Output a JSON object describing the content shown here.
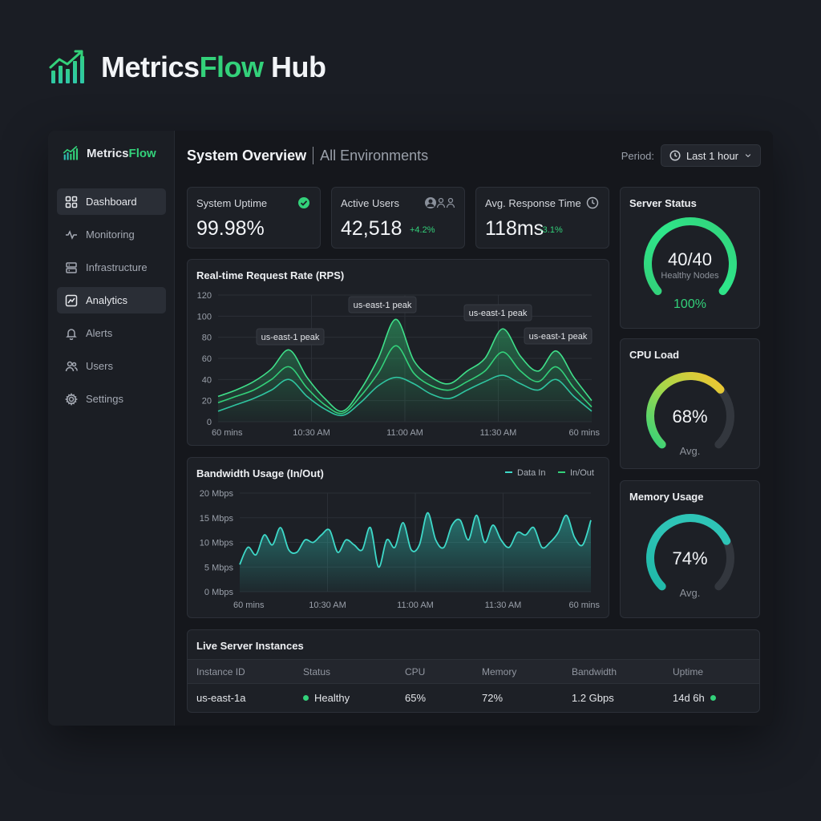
{
  "brand": {
    "name_prefix": "Metrics",
    "name_accent": "Flow",
    "name_suffix": " Hub"
  },
  "sidebar": {
    "brand_prefix": "Metrics",
    "brand_accent": "Flow",
    "items": [
      {
        "label": "Dashboard",
        "icon": "grid-icon",
        "active": true
      },
      {
        "label": "Monitoring",
        "icon": "pulse-icon",
        "active": false
      },
      {
        "label": "Infrastructure",
        "icon": "server-icon",
        "active": false
      },
      {
        "label": "Analytics",
        "icon": "chart-icon",
        "active": true
      },
      {
        "label": "Alerts",
        "icon": "bell-icon",
        "active": false
      },
      {
        "label": "Users",
        "icon": "users-icon",
        "active": false
      },
      {
        "label": "Settings",
        "icon": "gear-icon",
        "active": false
      }
    ]
  },
  "header": {
    "title": "System Overview",
    "subtitle": "All Environments",
    "period_label": "Period:",
    "period_value": "Last 1 hour"
  },
  "stats": {
    "uptime": {
      "label": "System Uptime",
      "value": "99.98%"
    },
    "users": {
      "label": "Active Users",
      "value": "42,518",
      "delta": "+4.2%"
    },
    "response": {
      "label": "Avg. Response Time",
      "value": "118ms",
      "delta": "-3.1%"
    }
  },
  "server_status": {
    "title": "Server Status",
    "value": "40/40",
    "sub": "Healthy Nodes",
    "pct": "100%",
    "fraction": 1.0
  },
  "cpu": {
    "title": "CPU Load",
    "value": "68%",
    "sub": "Avg.",
    "fraction": 0.68
  },
  "memory": {
    "title": "Memory Usage",
    "value": "74%",
    "sub": "Avg.",
    "fraction": 0.74
  },
  "colors": {
    "accent": "#33d17a",
    "teal": "#2ec4b6",
    "bg": "#1a1d24",
    "card": "#1d2026"
  },
  "chart_data": [
    {
      "type": "line",
      "title": "Real-time Request Rate (RPS)",
      "x_ticks": [
        "60 mins",
        "10:30 AM",
        "11:00 AM",
        "11:30 AM",
        "60 mins"
      ],
      "y_ticks": [
        "0",
        "20",
        "40",
        "60",
        "80",
        "100",
        "120"
      ],
      "ylim": [
        0,
        120
      ],
      "annotations": [
        "us-east-1 peak",
        "us-east-1 peak",
        "us-east-1 peak",
        "us-east-1 peak"
      ],
      "series": [
        {
          "values": [
            24,
            30,
            38,
            50,
            68,
            42,
            22,
            10,
            30,
            60,
            97,
            58,
            42,
            36,
            48,
            60,
            88,
            62,
            48,
            67,
            42,
            20
          ]
        },
        {
          "values": [
            18,
            24,
            30,
            40,
            52,
            32,
            16,
            8,
            24,
            46,
            72,
            46,
            34,
            30,
            38,
            48,
            66,
            48,
            38,
            52,
            32,
            14
          ]
        },
        {
          "values": [
            10,
            16,
            22,
            30,
            40,
            24,
            12,
            6,
            18,
            34,
            42,
            36,
            26,
            22,
            30,
            38,
            44,
            36,
            30,
            40,
            24,
            10
          ]
        }
      ]
    },
    {
      "type": "area",
      "title": "Bandwidth Usage (In/Out)",
      "legend": [
        "Data In",
        "In/Out"
      ],
      "legend_position": "top-right",
      "x_ticks": [
        "60 mins",
        "10:30 AM",
        "11:00 AM",
        "11:30 AM",
        "60 mins"
      ],
      "y_ticks": [
        "0 Mbps",
        "5 Mbps",
        "10 Mbps",
        "15 Mbps",
        "20 Mbps"
      ],
      "ylim": [
        0,
        20
      ],
      "values": [
        5.5,
        9,
        7.5,
        11.5,
        9.5,
        13,
        8.5,
        8,
        10.5,
        10,
        11.5,
        12.5,
        8,
        10.5,
        9.5,
        8.5,
        13,
        5,
        10.5,
        9,
        14,
        8.5,
        9.5,
        16,
        10.5,
        9,
        13.5,
        14.5,
        10.5,
        15.5,
        10,
        13.5,
        10.5,
        9,
        12,
        11.5,
        13,
        9,
        10,
        12,
        15.5,
        11,
        9.5,
        14.5
      ]
    }
  ],
  "table": {
    "title": "Live Server Instances",
    "headers": [
      "Instance ID",
      "Status",
      "CPU",
      "Memory",
      "Bandwidth",
      "Uptime"
    ],
    "rows": [
      {
        "id": "us-east-1a",
        "status": "Healthy",
        "cpu": "65%",
        "memory": "72%",
        "bandwidth": "1.2 Gbps",
        "uptime": "14d 6h"
      }
    ]
  }
}
